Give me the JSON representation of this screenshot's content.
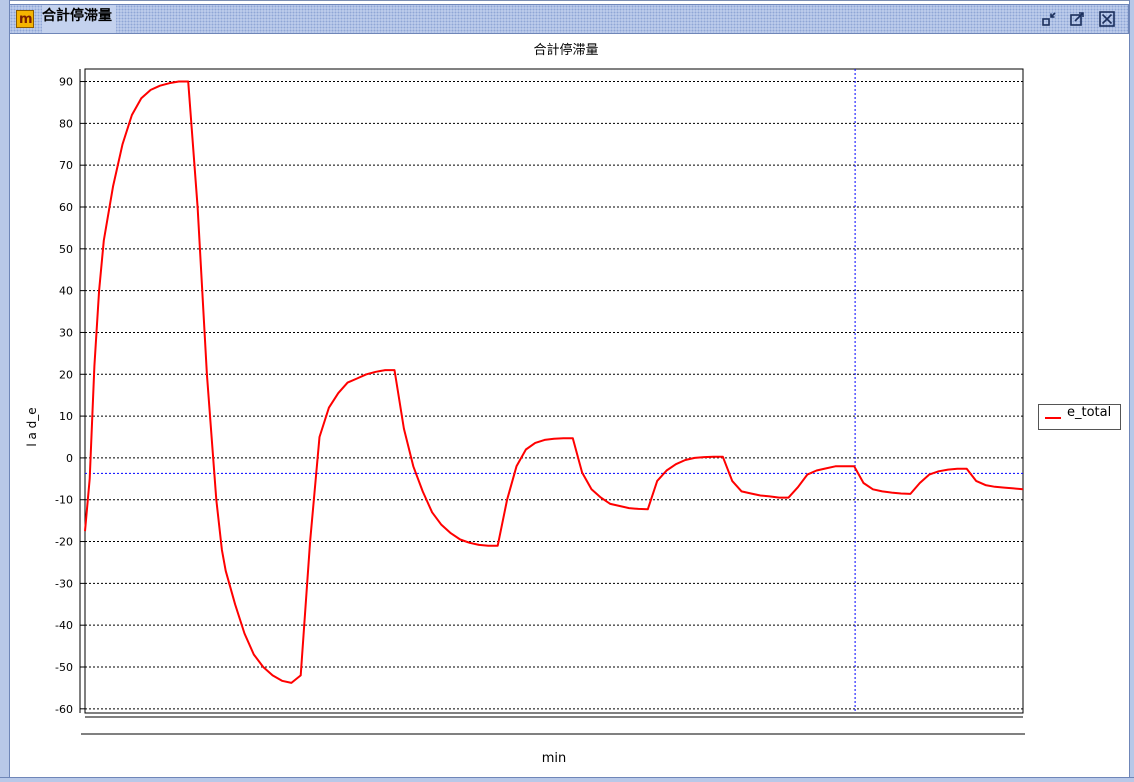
{
  "window": {
    "title": "合計停滞量",
    "icon": "m-app-icon",
    "icon_letter": "m",
    "buttons": [
      "restore-icon",
      "maximize-icon",
      "close-icon"
    ]
  },
  "colors": {
    "series": "#ff0000",
    "crosshair": "#0000ff",
    "grid": "#000000",
    "titlebar": "#c4d2ee"
  },
  "chart_data": {
    "type": "line",
    "title": "合計停滞量",
    "xlabel": "min",
    "ylabel": "l a d_e",
    "ylim": [
      -61,
      93
    ],
    "xlim": [
      0,
      100
    ],
    "yticks": [
      90,
      80,
      70,
      60,
      50,
      40,
      30,
      20,
      10,
      0,
      -10,
      -20,
      -30,
      -40,
      -50,
      -60
    ],
    "grid": true,
    "legend": "right",
    "crosshair": {
      "x": 82.1,
      "y": -3.7
    },
    "series": [
      {
        "name": "e_total",
        "color": "#ff0000",
        "x": [
          0,
          0.5,
          1,
          1.5,
          2,
          3,
          4,
          5,
          6,
          7,
          8,
          9,
          10,
          11,
          12,
          13,
          14,
          14.6,
          15,
          16,
          17,
          18,
          19,
          20,
          21,
          22,
          23,
          24,
          25,
          26,
          27,
          28,
          29,
          30,
          31,
          32,
          33,
          34,
          35,
          36,
          37,
          38,
          39,
          40,
          41,
          42,
          43,
          44,
          45,
          46,
          47,
          48,
          49,
          50,
          51,
          52,
          53,
          54,
          55,
          56,
          57,
          58,
          59,
          60,
          61,
          62,
          63,
          64,
          65,
          66,
          67,
          68,
          69,
          70,
          71,
          72,
          73,
          74,
          75,
          76,
          77,
          78,
          79,
          80,
          81,
          82,
          83,
          84,
          85,
          86,
          87,
          88,
          89,
          90,
          91,
          92,
          93,
          94,
          95,
          96,
          97,
          98,
          99,
          100
        ],
        "y": [
          -17.5,
          -5,
          22,
          40,
          52,
          65,
          75,
          82,
          86,
          88,
          89,
          89.6,
          90,
          90,
          60,
          20,
          -10,
          -22,
          -27,
          -35,
          -42,
          -47,
          -50,
          -52,
          -53.3,
          -53.8,
          -52,
          -20,
          5,
          12,
          15.5,
          18,
          19,
          20,
          20.6,
          21,
          21,
          7,
          -2,
          -8,
          -13,
          -16,
          -18,
          -19.5,
          -20.3,
          -20.8,
          -21,
          -21,
          -10,
          -2,
          2,
          3.6,
          4.3,
          4.6,
          4.7,
          4.7,
          -3.5,
          -7.5,
          -9.5,
          -11,
          -11.5,
          -12,
          -12.2,
          -12.3,
          -5.5,
          -3,
          -1.5,
          -0.5,
          0,
          0.2,
          0.3,
          0.3,
          -5.5,
          -8,
          -8.5,
          -9,
          -9.2,
          -9.5,
          -9.5,
          -7,
          -4,
          -3,
          -2.5,
          -2,
          -2,
          -2,
          -6,
          -7.5,
          -8,
          -8.3,
          -8.5,
          -8.6,
          -6,
          -4,
          -3.2,
          -2.8,
          -2.6,
          -2.6,
          -5.5,
          -6.5,
          -6.9,
          -7.1,
          -7.3,
          -7.5
        ]
      }
    ]
  }
}
